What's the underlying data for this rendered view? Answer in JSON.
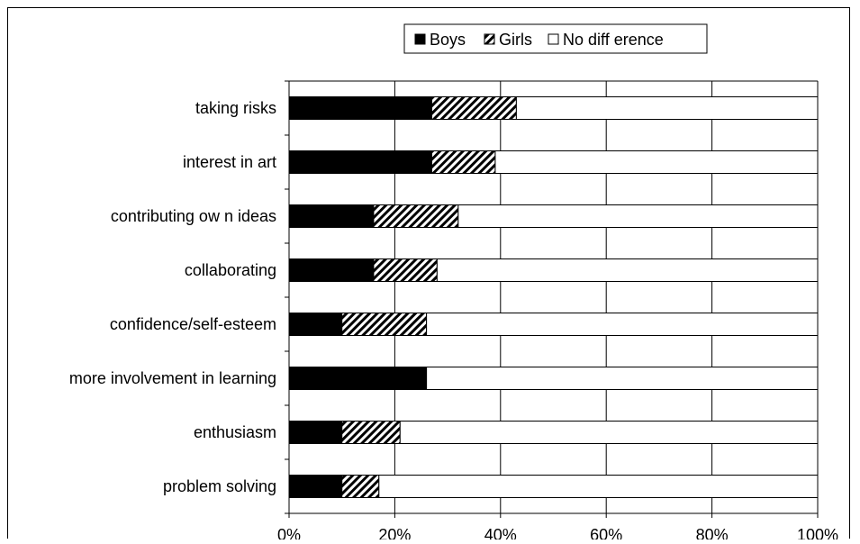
{
  "chart_data": {
    "type": "bar",
    "orientation": "horizontal",
    "stacked": "percent",
    "categories": [
      "taking risks",
      "interest in art",
      "contributing ow n ideas",
      "collaborating",
      "confidence/self-esteem",
      "more involvement in learning",
      "enthusiasm",
      "problem solving"
    ],
    "series": [
      {
        "name": "Boys",
        "values": [
          27,
          27,
          16,
          16,
          10,
          26,
          10,
          10
        ]
      },
      {
        "name": "Girls",
        "values": [
          16,
          12,
          16,
          12,
          16,
          0,
          11,
          7
        ]
      },
      {
        "name": "No diff erence",
        "values": [
          57,
          61,
          68,
          72,
          74,
          74,
          79,
          83
        ]
      }
    ],
    "xlim": [
      0,
      100
    ],
    "xticks": [
      "0%",
      "20%",
      "40%",
      "60%",
      "80%",
      "100%"
    ],
    "legend_position": "top",
    "grid": "vertical",
    "colors": {
      "Boys": "#000000",
      "Girls": "hatch",
      "No diff erence": "#ffffff"
    }
  }
}
